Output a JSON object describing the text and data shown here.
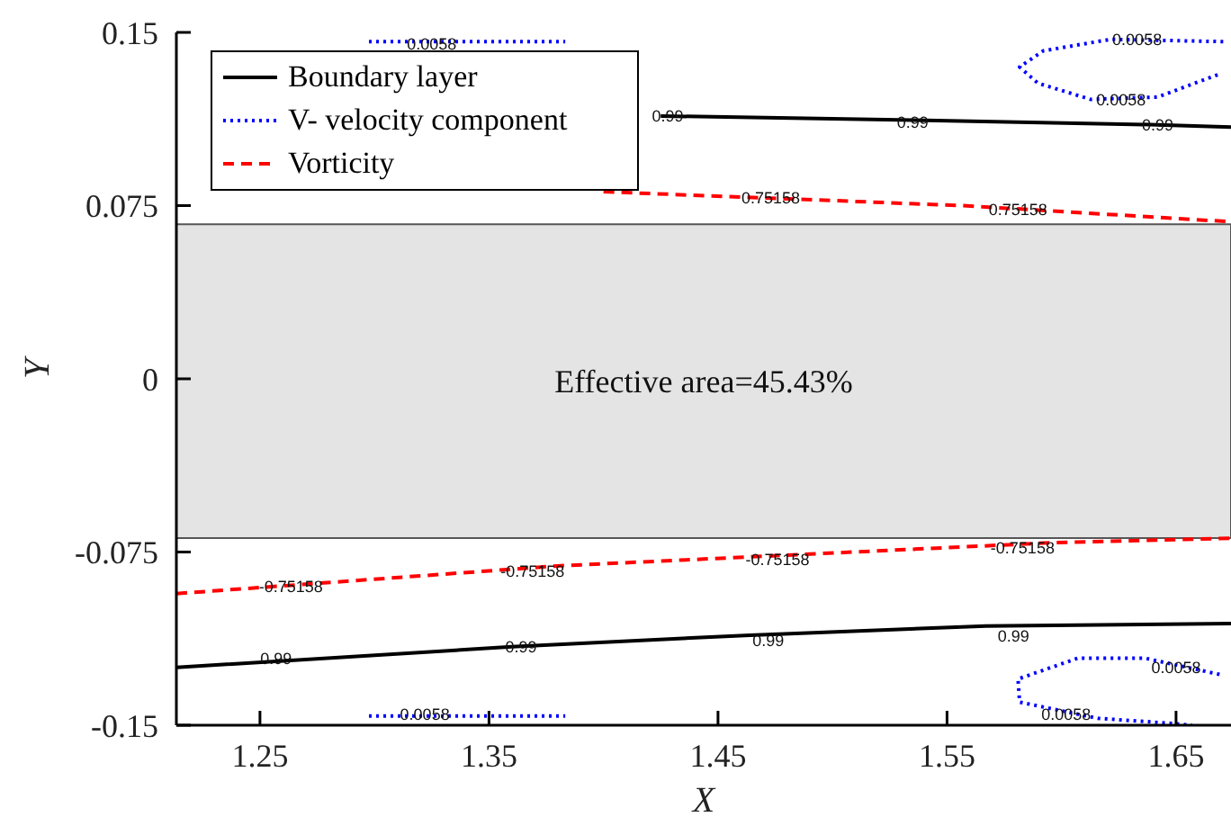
{
  "chart_data": {
    "type": "line",
    "xlabel": "X",
    "ylabel": "Y",
    "xlim": [
      1.2135,
      1.674
    ],
    "xticks": [
      1.25,
      1.35,
      1.45,
      1.55,
      1.65
    ],
    "ylim": [
      -0.15,
      0.15
    ],
    "yticks": [
      -0.15,
      -0.075,
      0,
      0.075,
      0.15
    ],
    "grid": false,
    "legend": "top left",
    "series": [
      {
        "name": "Boundary layer",
        "color": "#000000",
        "line_style": "solid",
        "x": [
          1.425,
          1.535,
          1.642,
          1.674
        ],
        "values": [
          0.1138,
          0.112,
          0.11,
          0.109
        ]
      },
      {
        "name": "V- velocity component",
        "color": "#0000ff",
        "line_style": "dotted",
        "x": [
          1.6706,
          1.6214,
          1.592,
          1.5817,
          1.5897,
          1.6127,
          1.642,
          1.669
        ],
        "values": [
          0.146,
          0.147,
          0.142,
          0.135,
          0.128,
          0.121,
          0.122,
          0.132
        ]
      },
      {
        "color": "#0000ff",
        "line_style": "dotted",
        "x": [
          1.669,
          1.6365,
          1.607,
          1.581,
          1.5817,
          1.6159,
          1.6452,
          1.657
        ],
        "values": [
          -0.128,
          -0.121,
          -0.121,
          -0.13,
          -0.14,
          -0.147,
          -0.149,
          -0.15
        ]
      },
      {
        "color": "#0000ff",
        "line_style": "dotted",
        "x": [
          1.2976,
          1.3833
        ],
        "values": [
          0.146,
          0.146
        ]
      },
      {
        "color": "#0000ff",
        "line_style": "dotted",
        "x": [
          1.2976,
          1.3833
        ],
        "values": [
          -0.146,
          -0.146
        ]
      },
      {
        "name": "Vorticity",
        "color": "#ff0000",
        "line_style": "dashed",
        "x": [
          1.4,
          1.557,
          1.674
        ],
        "values": [
          0.081,
          0.075,
          0.068
        ]
      },
      {
        "color": "#ff0000",
        "line_style": "dashed",
        "x": [
          1.2135,
          1.38,
          1.595,
          1.674
        ],
        "values": [
          -0.093,
          -0.081,
          -0.071,
          -0.069
        ]
      },
      {
        "color": "#000000",
        "line_style": "solid",
        "x": [
          1.2135,
          1.36,
          1.464,
          1.567,
          1.674
        ],
        "values": [
          -0.125,
          -0.116,
          -0.111,
          -0.107,
          -0.106
        ]
      }
    ],
    "bands": [
      {
        "axis": "y",
        "from": -0.069,
        "to": 0.0669,
        "label": "Effective area=45.43%",
        "color": "#e4e4e4"
      }
    ],
    "annotations": [
      {
        "text": "0.99",
        "x": 1.428,
        "y": 0.1138
      },
      {
        "text": "0.99",
        "x": 1.535,
        "y": 0.111
      },
      {
        "text": "0.99",
        "x": 1.642,
        "y": 0.11
      },
      {
        "text": "0.75158",
        "x": 1.473,
        "y": 0.0785
      },
      {
        "text": "0.75158",
        "x": 1.581,
        "y": 0.0735
      },
      {
        "text": "0.0058",
        "x": 1.633,
        "y": 0.147
      },
      {
        "text": "0.0058",
        "x": 1.626,
        "y": 0.121
      },
      {
        "text": "0.0058",
        "x": 1.325,
        "y": 0.145
      },
      {
        "text": "-0.75158",
        "x": 1.2635,
        "y": -0.0898
      },
      {
        "text": "-0.75158",
        "x": 1.369,
        "y": -0.0833
      },
      {
        "text": "-0.75158",
        "x": 1.476,
        "y": -0.0783
      },
      {
        "text": "-0.75158",
        "x": 1.583,
        "y": -0.0729
      },
      {
        "text": "0.99",
        "x": 1.257,
        "y": -0.121
      },
      {
        "text": "0.99",
        "x": 1.364,
        "y": -0.116
      },
      {
        "text": "0.99",
        "x": 1.472,
        "y": -0.1133
      },
      {
        "text": "0.99",
        "x": 1.579,
        "y": -0.1114
      },
      {
        "text": "0.0058",
        "x": 1.65,
        "y": -0.125
      },
      {
        "text": "0.0058",
        "x": 1.602,
        "y": -0.145
      },
      {
        "text": "0.0058",
        "x": 1.322,
        "y": -0.145
      }
    ]
  }
}
